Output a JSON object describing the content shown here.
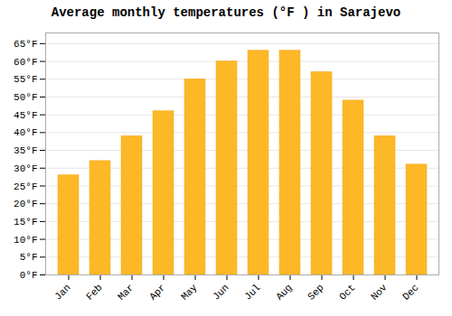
{
  "chart_data": {
    "type": "bar",
    "title": "Average monthly temperatures (°F ) in Sarajevo",
    "categories": [
      "Jan",
      "Feb",
      "Mar",
      "Apr",
      "May",
      "Jun",
      "Jul",
      "Aug",
      "Sep",
      "Oct",
      "Nov",
      "Dec"
    ],
    "values": [
      28,
      32,
      39,
      46,
      55,
      60,
      63,
      63,
      57,
      49,
      39,
      31
    ],
    "color": "#FDB827",
    "ylim": [
      0,
      68
    ],
    "yticks": [
      {
        "value": 0,
        "label": "0°F"
      },
      {
        "value": 5,
        "label": "5°F"
      },
      {
        "value": 10,
        "label": "10°F"
      },
      {
        "value": 15,
        "label": "15°F"
      },
      {
        "value": 20,
        "label": "20°F"
      },
      {
        "value": 25,
        "label": "25°F"
      },
      {
        "value": 30,
        "label": "30°F"
      },
      {
        "value": 35,
        "label": "35°F"
      },
      {
        "value": 40,
        "label": "40°F"
      },
      {
        "value": 45,
        "label": "45°F"
      },
      {
        "value": 50,
        "label": "50°F"
      },
      {
        "value": 55,
        "label": "55°F"
      },
      {
        "value": 60,
        "label": "60°F"
      },
      {
        "value": 65,
        "label": "65°F"
      }
    ],
    "grid": true
  }
}
